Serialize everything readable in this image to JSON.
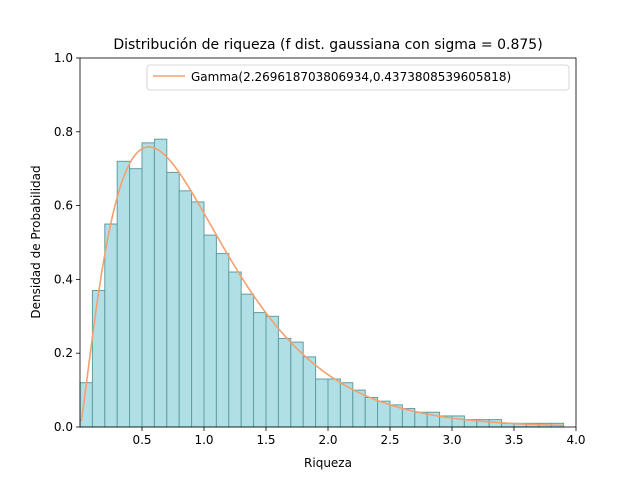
{
  "chart_data": {
    "type": "bar",
    "title": "Distribución de riqueza (f dist. gaussiana con sigma = 0.875)",
    "xlabel": "Riqueza",
    "ylabel": "Densidad de Probabilidad",
    "xlim": [
      0.0,
      4.0
    ],
    "ylim": [
      0.0,
      1.0
    ],
    "xticks": [
      "0.5",
      "1.0",
      "1.5",
      "2.0",
      "2.5",
      "3.0",
      "3.5",
      "4.0"
    ],
    "yticks": [
      "0.0",
      "0.2",
      "0.4",
      "0.6",
      "0.8",
      "1.0"
    ],
    "bin_width": 0.1,
    "histogram": {
      "x_start": [
        0.0,
        0.1,
        0.2,
        0.3,
        0.4,
        0.5,
        0.6,
        0.7,
        0.8,
        0.9,
        1.0,
        1.1,
        1.2,
        1.3,
        1.4,
        1.5,
        1.6,
        1.7,
        1.8,
        1.9,
        2.0,
        2.1,
        2.2,
        2.3,
        2.4,
        2.5,
        2.6,
        2.7,
        2.8,
        2.9,
        3.0,
        3.1,
        3.2,
        3.3,
        3.4,
        3.5,
        3.6,
        3.7,
        3.8
      ],
      "values": [
        0.12,
        0.37,
        0.55,
        0.72,
        0.7,
        0.77,
        0.78,
        0.69,
        0.64,
        0.61,
        0.52,
        0.47,
        0.42,
        0.36,
        0.31,
        0.3,
        0.24,
        0.23,
        0.19,
        0.13,
        0.13,
        0.12,
        0.1,
        0.08,
        0.07,
        0.06,
        0.05,
        0.04,
        0.04,
        0.03,
        0.03,
        0.02,
        0.02,
        0.02,
        0.01,
        0.01,
        0.01,
        0.01,
        0.01
      ],
      "fill": "#b0e0e6",
      "edge": "#5f9ea0"
    },
    "curve": {
      "name": "Gamma(2.269618703806934,0.4373808539605818)",
      "shape": 2.269618703806934,
      "scale": 0.4373808539605818,
      "x_range": [
        0.0,
        3.9
      ],
      "color": "#f4a070"
    },
    "legend_position": "top-right",
    "grid": false
  }
}
